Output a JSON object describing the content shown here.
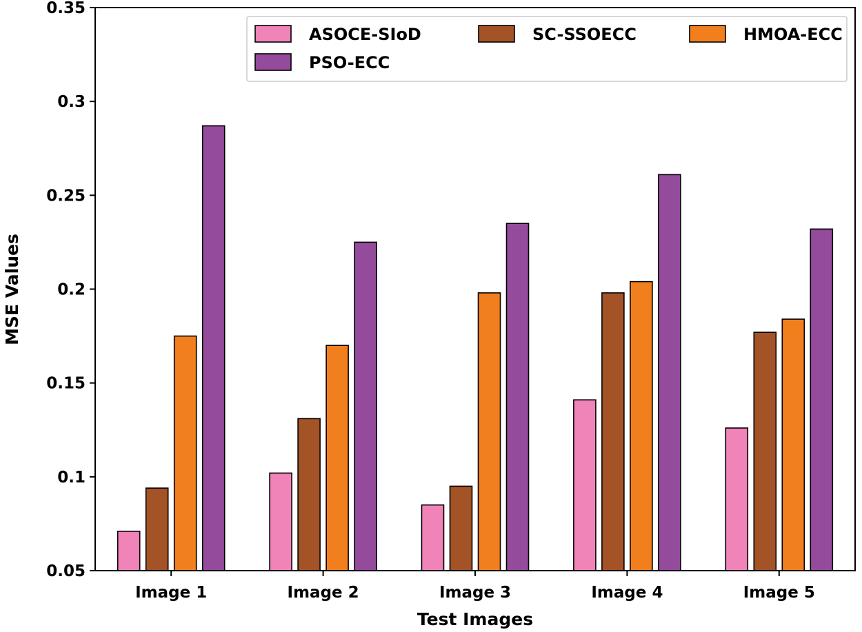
{
  "chart_data": {
    "type": "bar",
    "title": "",
    "xlabel": "Test Images",
    "ylabel": "MSE Values",
    "ylim": [
      0.05,
      0.35
    ],
    "yticks": [
      "0.05",
      "0.1",
      "0.15",
      "0.2",
      "0.25",
      "0.3",
      "0.35"
    ],
    "categories": [
      "Image 1",
      "Image 2",
      "Image 3",
      "Image 4",
      "Image 5"
    ],
    "series": [
      {
        "name": "ASOCE-SIoD",
        "color": "#f083b8",
        "values": [
          0.071,
          0.102,
          0.085,
          0.141,
          0.126
        ]
      },
      {
        "name": "SC-SSOECC",
        "color": "#a45326",
        "values": [
          0.094,
          0.131,
          0.095,
          0.198,
          0.177
        ]
      },
      {
        "name": "HMOA-ECC",
        "color": "#f27f1e",
        "values": [
          0.175,
          0.17,
          0.198,
          0.204,
          0.184
        ]
      },
      {
        "name": "PSO-ECC",
        "color": "#944b9b",
        "values": [
          0.287,
          0.225,
          0.235,
          0.261,
          0.232
        ]
      }
    ],
    "legend": {
      "position": "top-right",
      "columns": 3
    },
    "grid": false
  }
}
